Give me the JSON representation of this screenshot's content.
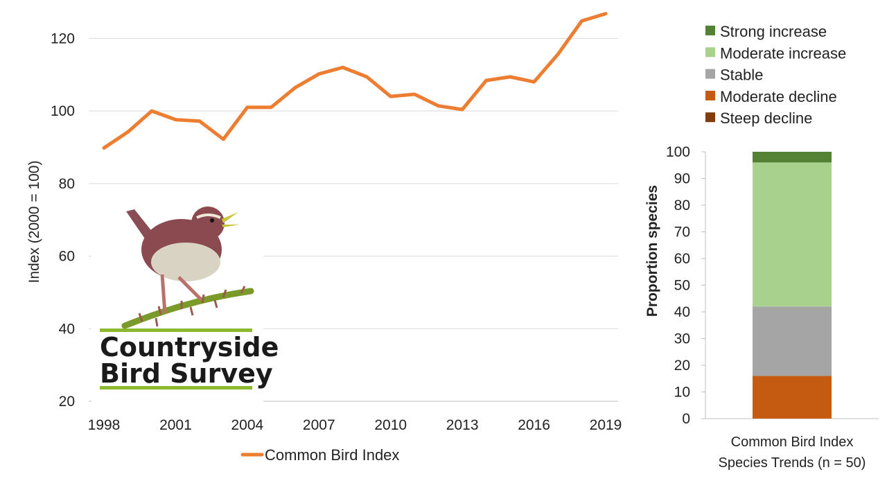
{
  "chart_data": [
    {
      "type": "line",
      "title": "",
      "xlabel": "",
      "ylabel": "Index (2000 = 100)",
      "ylim": [
        20,
        130
      ],
      "y_ticks": [
        20,
        40,
        60,
        80,
        100,
        120
      ],
      "x_ticks": [
        1998,
        2001,
        2004,
        2007,
        2010,
        2013,
        2016,
        2019
      ],
      "xlim": [
        1998,
        2019
      ],
      "grid": true,
      "legend_position": "bottom",
      "series": [
        {
          "name": "Common Bird Index",
          "color": "#ED7D31",
          "x": [
            1998,
            1999,
            2000,
            2001,
            2002,
            2003,
            2004,
            2005,
            2006,
            2007,
            2008,
            2009,
            2010,
            2011,
            2012,
            2013,
            2014,
            2015,
            2016,
            2017,
            2018,
            2019
          ],
          "values": [
            89.8,
            94.2,
            100,
            97.6,
            97.2,
            92.2,
            101,
            101,
            106.4,
            110.2,
            112,
            109.4,
            104,
            104.6,
            101.4,
            100.4,
            108.4,
            109.4,
            108,
            115.6,
            124.8,
            126.8
          ]
        }
      ]
    },
    {
      "type": "bar",
      "stacked": true,
      "title": "",
      "xlabel": "",
      "ylabel": "Proportion species",
      "ylim": [
        0,
        100
      ],
      "y_ticks": [
        0,
        10,
        20,
        30,
        40,
        50,
        60,
        70,
        80,
        90,
        100
      ],
      "categories": [
        "Common Bird Index Species Trends (n = 50)"
      ],
      "category_lines": [
        "Common Bird Index",
        "Species Trends (n = 50)"
      ],
      "legend_position": "top",
      "series": [
        {
          "name": "Steep decline",
          "color": "#843C0C",
          "values": [
            0
          ]
        },
        {
          "name": "Moderate decline",
          "color": "#C55A11",
          "values": [
            16
          ]
        },
        {
          "name": "Stable",
          "color": "#A5A5A5",
          "values": [
            26
          ]
        },
        {
          "name": "Moderate increase",
          "color": "#A9D18E",
          "values": [
            54
          ]
        },
        {
          "name": "Strong increase",
          "color": "#548235",
          "values": [
            4
          ]
        }
      ],
      "legend_order": [
        "Strong increase",
        "Moderate increase",
        "Stable",
        "Moderate decline",
        "Steep decline"
      ]
    }
  ],
  "logo": {
    "line1": "Countryside",
    "line2": "Bird Survey",
    "icon": "wren-bird-icon"
  },
  "colors": {
    "grid": "#D9D9D9",
    "axis": "#BFBFBF",
    "line": "#ED7D31",
    "logo_bar": "#8DB92E"
  }
}
